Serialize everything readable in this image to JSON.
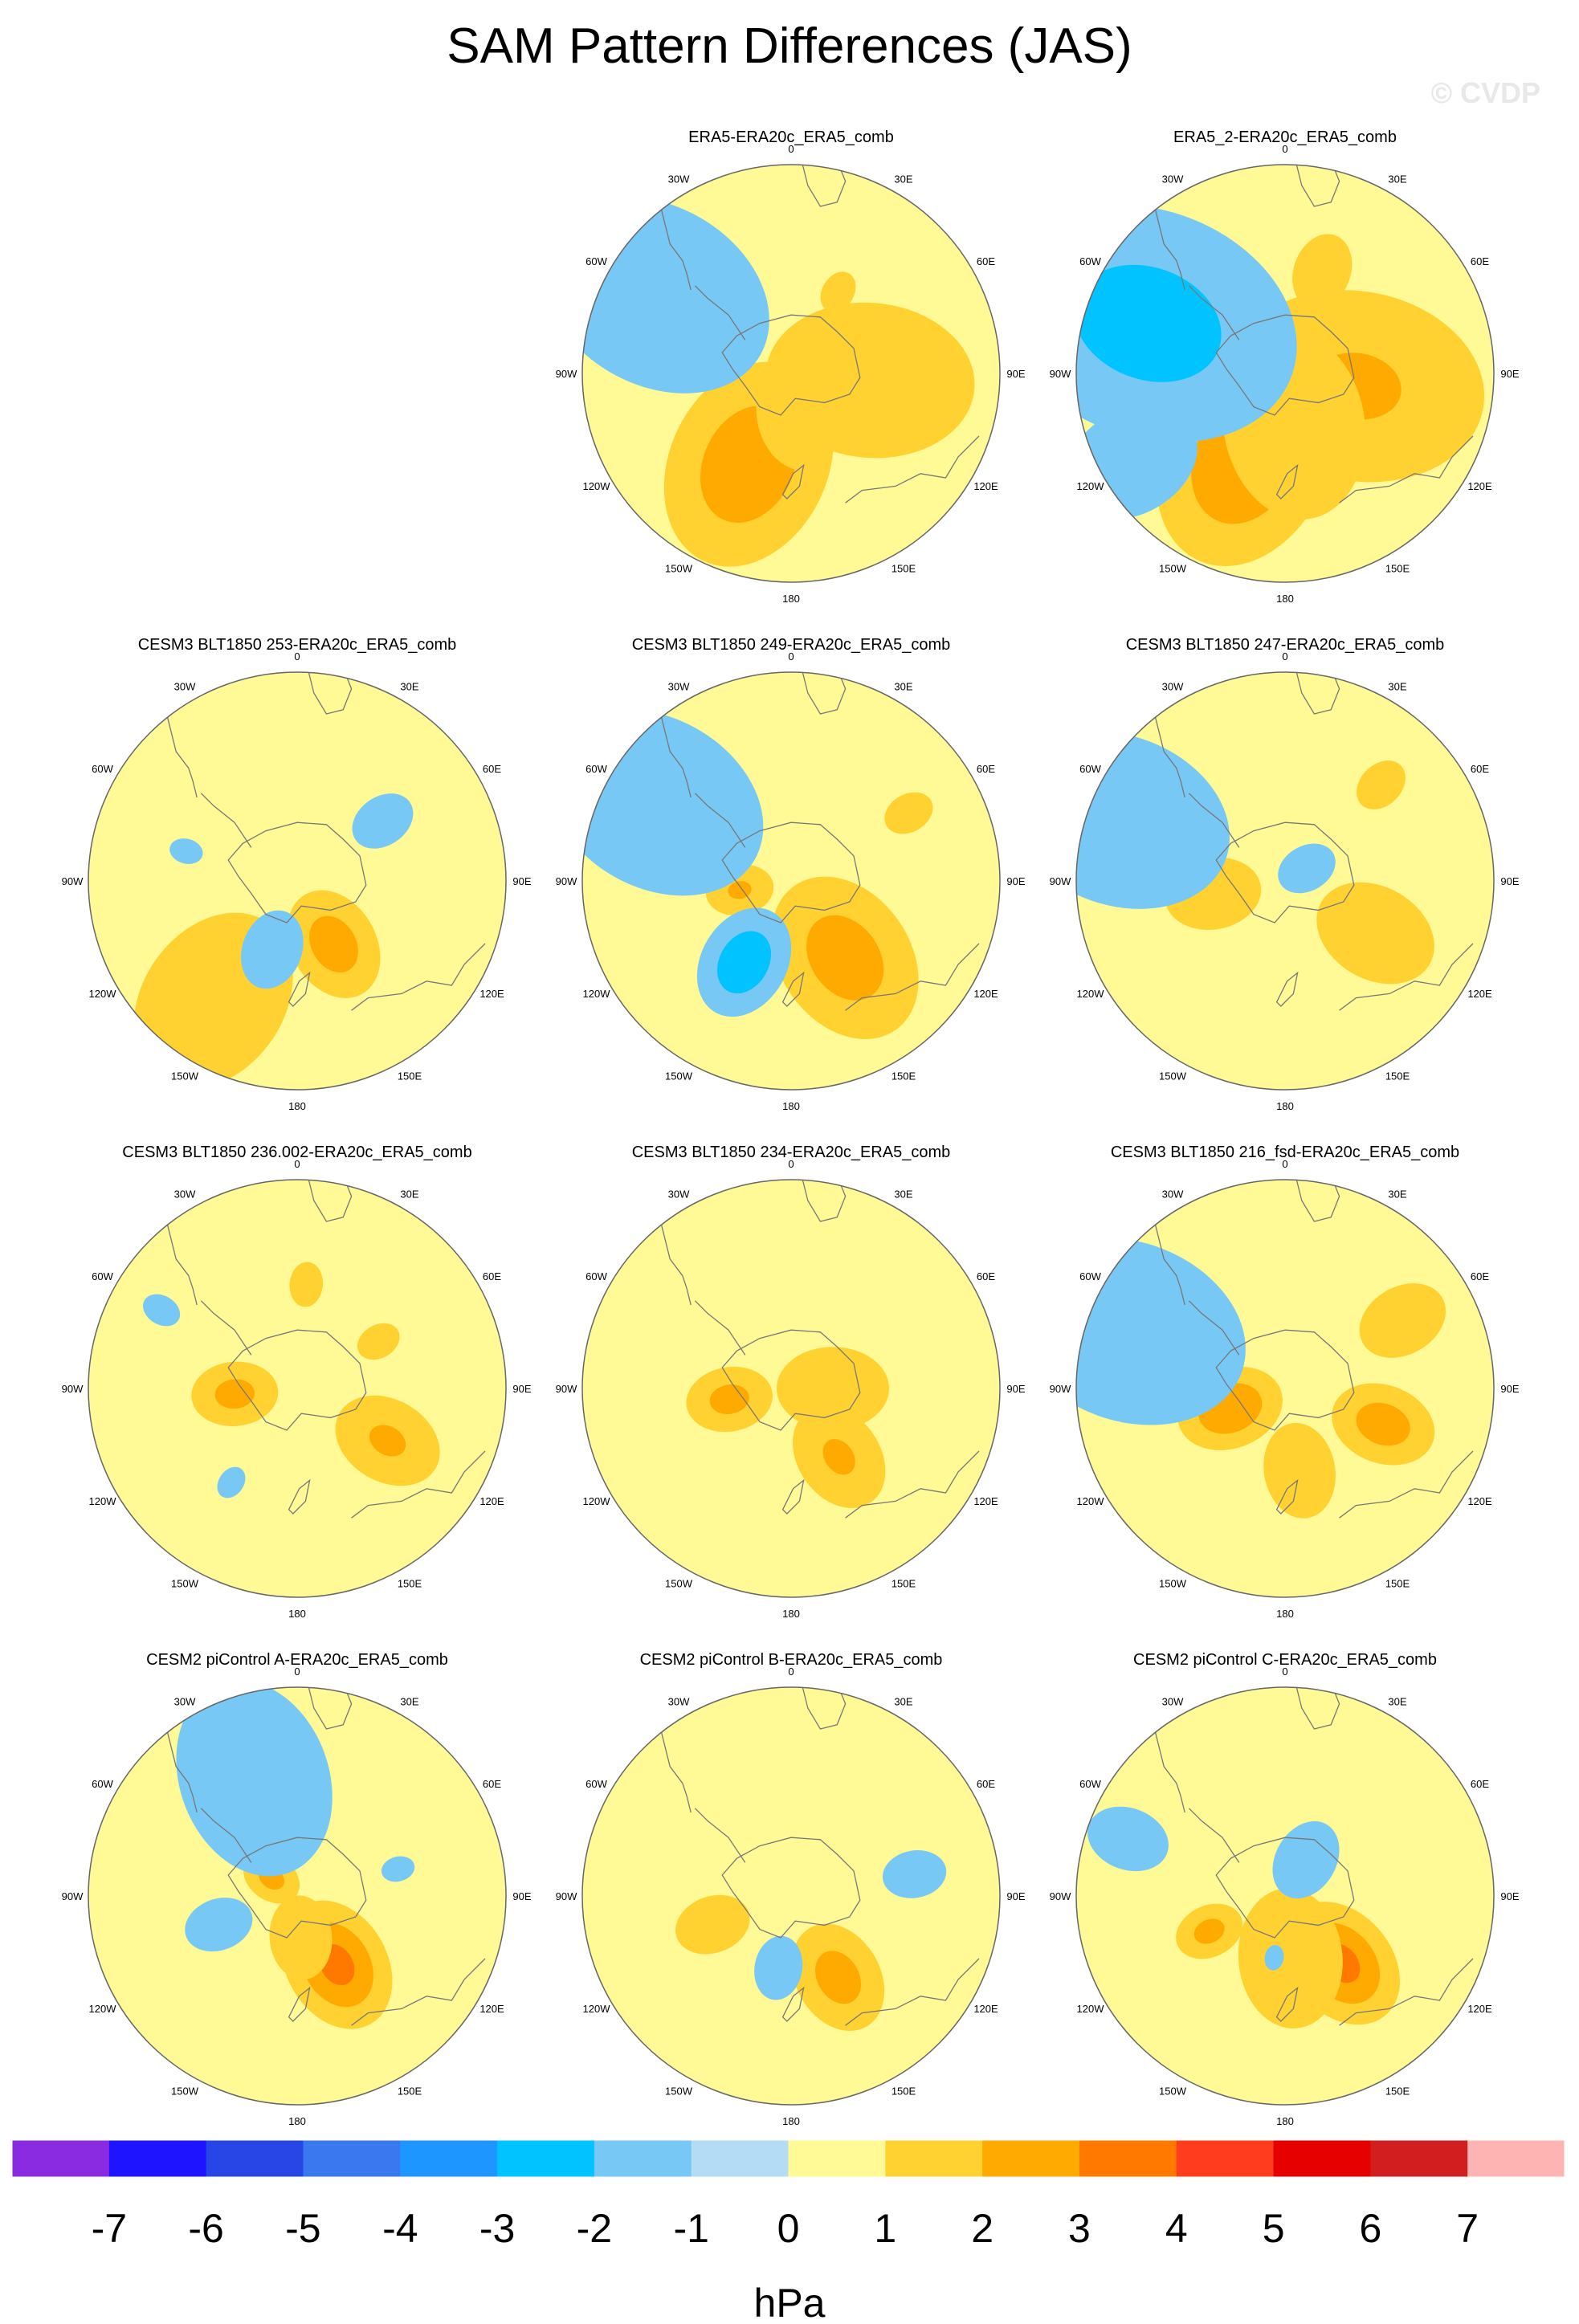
{
  "title": "SAM Pattern Differences (JAS)",
  "watermark": "© CVDP",
  "colorbar": {
    "unit": "hPa",
    "labels": [
      "-7",
      "-6",
      "-5",
      "-4",
      "-3",
      "-2",
      "-1",
      "0",
      "1",
      "2",
      "3",
      "4",
      "5",
      "6",
      "7"
    ],
    "colors": [
      "#8a2be2",
      "#1e14ff",
      "#2846e6",
      "#3a78f0",
      "#1e96ff",
      "#00c3ff",
      "#78c8f5",
      "#b4dcf5",
      "#fffa96",
      "#ffd232",
      "#ffaa00",
      "#ff7800",
      "#ff3c1e",
      "#e60000",
      "#d21e1e",
      "#ffb4b4"
    ]
  },
  "map_labels": {
    "lon_0": "0",
    "lon_30E": "30E",
    "lon_60E": "60E",
    "lon_90E": "90E",
    "lon_120E": "120E",
    "lon_150E": "150E",
    "lon_180": "180",
    "lon_150W": "150W",
    "lon_120W": "120W",
    "lon_90W": "90W",
    "lon_60W": "60W",
    "lon_30W": "30W"
  },
  "chart_data": {
    "type": "heatmap",
    "projection": "south-polar stereographic",
    "variable": "SAM pattern difference",
    "season": "JAS",
    "units": "hPa",
    "contour_levels": [
      -7,
      -6,
      -5,
      -4,
      -3,
      -2,
      -1,
      0,
      1,
      2,
      3,
      4,
      5,
      6,
      7
    ],
    "panels": [
      {
        "title": "ERA5-ERA20c_ERA5_comb",
        "row": 0,
        "col": 1,
        "blobs": [
          {
            "lon": -155,
            "r": 0.48,
            "amp": 2.8,
            "size": 0.24
          },
          {
            "lon": 95,
            "r": 0.38,
            "amp": 1.8,
            "size": 0.26
          },
          {
            "lon": 170,
            "r": 0.2,
            "amp": 1.2,
            "size": 0.2
          },
          {
            "lon": 30,
            "r": 0.45,
            "amp": 1.1,
            "size": 0.1
          },
          {
            "lon": -60,
            "r": 0.75,
            "amp": -1.8,
            "size": 0.3
          },
          {
            "lon": -130,
            "r": 0.85,
            "amp": -1.0,
            "size": 0.2
          }
        ]
      },
      {
        "title": "ERA5_2-ERA20c_ERA5_comb",
        "row": 0,
        "col": 2,
        "blobs": [
          {
            "lon": -155,
            "r": 0.45,
            "amp": 3.0,
            "size": 0.25
          },
          {
            "lon": 100,
            "r": 0.35,
            "amp": 2.2,
            "size": 0.3
          },
          {
            "lon": 170,
            "r": 0.25,
            "amp": 1.6,
            "size": 0.25
          },
          {
            "lon": 20,
            "r": 0.52,
            "amp": 1.3,
            "size": 0.12
          },
          {
            "lon": -70,
            "r": 0.7,
            "amp": -2.5,
            "size": 0.35
          },
          {
            "lon": -120,
            "r": 0.85,
            "amp": -1.2,
            "size": 0.25
          }
        ]
      },
      {
        "title": "CESM3 BLT1850 253-ERA20c_ERA5_comb",
        "row": 1,
        "col": 0,
        "blobs": [
          {
            "lon": 150,
            "r": 0.35,
            "amp": 2.6,
            "size": 0.13
          },
          {
            "lon": -145,
            "r": 0.7,
            "amp": 1.6,
            "size": 0.25
          },
          {
            "lon": 160,
            "r": 0.2,
            "amp": 1.0,
            "size": 0.2
          },
          {
            "lon": -160,
            "r": 0.35,
            "amp": -1.8,
            "size": 0.1
          },
          {
            "lon": 55,
            "r": 0.5,
            "amp": -1.5,
            "size": 0.09
          },
          {
            "lon": -75,
            "r": 0.55,
            "amp": -1.2,
            "size": 0.06
          }
        ]
      },
      {
        "title": "CESM3 BLT1850 249-ERA20c_ERA5_comb",
        "row": 1,
        "col": 1,
        "blobs": [
          {
            "lon": 145,
            "r": 0.45,
            "amp": 2.6,
            "size": 0.2
          },
          {
            "lon": -100,
            "r": 0.25,
            "amp": 2.2,
            "size": 0.08
          },
          {
            "lon": 60,
            "r": 0.65,
            "amp": 1.3,
            "size": 0.08
          },
          {
            "lon": -150,
            "r": 0.45,
            "amp": -2.8,
            "size": 0.13
          },
          {
            "lon": -60,
            "r": 0.75,
            "amp": -1.6,
            "size": 0.3
          }
        ]
      },
      {
        "title": "CESM3 BLT1850 247-ERA20c_ERA5_comb",
        "row": 1,
        "col": 2,
        "blobs": [
          {
            "lon": 120,
            "r": 0.5,
            "amp": 2.0,
            "size": 0.15
          },
          {
            "lon": -100,
            "r": 0.35,
            "amp": 1.8,
            "size": 0.12
          },
          {
            "lon": 45,
            "r": 0.65,
            "amp": 1.4,
            "size": 0.08
          },
          {
            "lon": 60,
            "r": 0.12,
            "amp": -1.6,
            "size": 0.08
          },
          {
            "lon": -70,
            "r": 0.85,
            "amp": -1.6,
            "size": 0.3
          }
        ]
      },
      {
        "title": "CESM3 BLT1850 236.002-ERA20c_ERA5_comb",
        "row": 2,
        "col": 0,
        "blobs": [
          {
            "lon": -95,
            "r": 0.3,
            "amp": 2.4,
            "size": 0.1
          },
          {
            "lon": 120,
            "r": 0.5,
            "amp": 2.2,
            "size": 0.13
          },
          {
            "lon": 60,
            "r": 0.45,
            "amp": 1.3,
            "size": 0.07
          },
          {
            "lon": 5,
            "r": 0.5,
            "amp": 1.2,
            "size": 0.08
          },
          {
            "lon": -145,
            "r": 0.55,
            "amp": -1.2,
            "size": 0.06
          },
          {
            "lon": -60,
            "r": 0.75,
            "amp": -1.2,
            "size": 0.07
          }
        ]
      },
      {
        "title": "CESM3 BLT1850 234-ERA20c_ERA5_comb",
        "row": 2,
        "col": 1,
        "blobs": [
          {
            "lon": -100,
            "r": 0.3,
            "amp": 2.4,
            "size": 0.1
          },
          {
            "lon": 145,
            "r": 0.4,
            "amp": 2.2,
            "size": 0.13
          },
          {
            "lon": 90,
            "r": 0.2,
            "amp": 1.2,
            "size": 0.2
          },
          {
            "lon": -45,
            "r": 0.5,
            "amp": -1.0,
            "size": 0.05
          }
        ]
      },
      {
        "title": "CESM3 BLT1850 216_fsd-ERA20c_ERA5_comb",
        "row": 2,
        "col": 2,
        "blobs": [
          {
            "lon": -110,
            "r": 0.28,
            "amp": 3.0,
            "size": 0.12
          },
          {
            "lon": 110,
            "r": 0.5,
            "amp": 2.6,
            "size": 0.12
          },
          {
            "lon": 60,
            "r": 0.65,
            "amp": 1.6,
            "size": 0.12
          },
          {
            "lon": 170,
            "r": 0.4,
            "amp": 1.3,
            "size": 0.15
          },
          {
            "lon": -70,
            "r": 0.8,
            "amp": -1.8,
            "size": 0.3
          }
        ]
      },
      {
        "title": "CESM2 piControl A-ERA20c_ERA5_comb",
        "row": 3,
        "col": 0,
        "blobs": [
          {
            "lon": 150,
            "r": 0.38,
            "amp": 3.4,
            "size": 0.15
          },
          {
            "lon": -55,
            "r": 0.15,
            "amp": 2.4,
            "size": 0.07
          },
          {
            "lon": 175,
            "r": 0.2,
            "amp": 1.2,
            "size": 0.15
          },
          {
            "lon": -20,
            "r": 0.6,
            "amp": -1.8,
            "size": 0.25
          },
          {
            "lon": -110,
            "r": 0.4,
            "amp": -1.4,
            "size": 0.1
          },
          {
            "lon": 75,
            "r": 0.5,
            "amp": -1.2,
            "size": 0.06
          }
        ]
      },
      {
        "title": "CESM2 piControl B-ERA20c_ERA5_comb",
        "row": 3,
        "col": 1,
        "blobs": [
          {
            "lon": 150,
            "r": 0.45,
            "amp": 2.5,
            "size": 0.13
          },
          {
            "lon": -110,
            "r": 0.4,
            "amp": 1.6,
            "size": 0.1
          },
          {
            "lon": -170,
            "r": 0.35,
            "amp": -1.8,
            "size": 0.08
          },
          {
            "lon": 80,
            "r": 0.6,
            "amp": -1.3,
            "size": 0.1
          },
          {
            "lon": 5,
            "r": 0.8,
            "amp": -1.0,
            "size": 0.05
          }
        ]
      },
      {
        "title": "CESM2 piControl C-ERA20c_ERA5_comb",
        "row": 3,
        "col": 2,
        "blobs": [
          {
            "lon": 140,
            "r": 0.42,
            "amp": 3.4,
            "size": 0.15
          },
          {
            "lon": -115,
            "r": 0.4,
            "amp": 2.4,
            "size": 0.08
          },
          {
            "lon": 175,
            "r": 0.3,
            "amp": 1.2,
            "size": 0.25
          },
          {
            "lon": 30,
            "r": 0.2,
            "amp": -1.9,
            "size": 0.1
          },
          {
            "lon": -170,
            "r": 0.3,
            "amp": -1.3,
            "size": 0.04
          },
          {
            "lon": -70,
            "r": 0.8,
            "amp": -1.4,
            "size": 0.12
          }
        ]
      }
    ]
  }
}
